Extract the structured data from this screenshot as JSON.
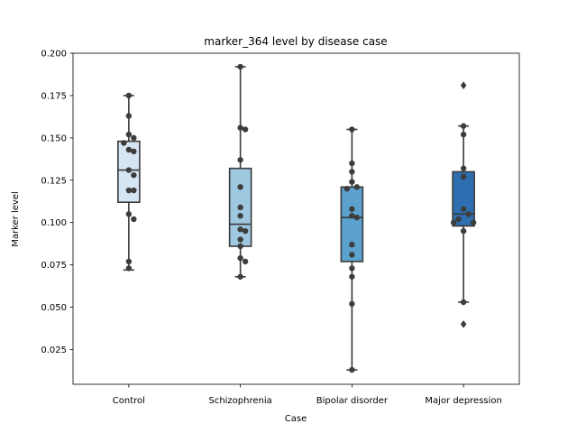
{
  "chart_data": {
    "type": "box",
    "title": "marker_364 level by disease case",
    "xlabel": "Case",
    "ylabel": "Marker level",
    "ylim": [
      0.0045,
      0.2
    ],
    "yticks": [
      0.025,
      0.05,
      0.075,
      0.1,
      0.125,
      0.15,
      0.175,
      0.2
    ],
    "ytick_labels": [
      "0.025",
      "0.050",
      "0.075",
      "0.100",
      "0.125",
      "0.150",
      "0.175",
      "0.200"
    ],
    "categories": [
      "Control",
      "Schizophrenia",
      "Bipolar disorder",
      "Major depression"
    ],
    "colors": [
      "#d6e5f4",
      "#9ec8e0",
      "#5ba2cf",
      "#2d6fb0"
    ],
    "series": [
      {
        "category": "Control",
        "box": {
          "q1": 0.112,
          "median": 0.131,
          "q3": 0.148,
          "whisker_low": 0.072,
          "whisker_high": 0.175
        },
        "outliers": [],
        "points": [
          0.175,
          0.163,
          0.152,
          0.15,
          0.147,
          0.143,
          0.142,
          0.131,
          0.128,
          0.119,
          0.119,
          0.105,
          0.102,
          0.077,
          0.073
        ]
      },
      {
        "category": "Schizophrenia",
        "box": {
          "q1": 0.086,
          "median": 0.099,
          "q3": 0.132,
          "whisker_low": 0.068,
          "whisker_high": 0.192
        },
        "outliers": [],
        "points": [
          0.192,
          0.156,
          0.155,
          0.137,
          0.121,
          0.109,
          0.104,
          0.096,
          0.095,
          0.09,
          0.086,
          0.079,
          0.077,
          0.068
        ]
      },
      {
        "category": "Bipolar disorder",
        "box": {
          "q1": 0.077,
          "median": 0.103,
          "q3": 0.121,
          "whisker_low": 0.013,
          "whisker_high": 0.155
        },
        "outliers": [],
        "points": [
          0.155,
          0.135,
          0.13,
          0.124,
          0.121,
          0.12,
          0.108,
          0.104,
          0.103,
          0.087,
          0.081,
          0.073,
          0.068,
          0.052,
          0.013
        ]
      },
      {
        "category": "Major depression",
        "box": {
          "q1": 0.098,
          "median": 0.105,
          "q3": 0.13,
          "whisker_low": 0.053,
          "whisker_high": 0.157
        },
        "outliers": [
          0.181,
          0.04
        ],
        "points": [
          0.157,
          0.152,
          0.132,
          0.127,
          0.108,
          0.105,
          0.102,
          0.1,
          0.1,
          0.095,
          0.053
        ]
      }
    ]
  }
}
